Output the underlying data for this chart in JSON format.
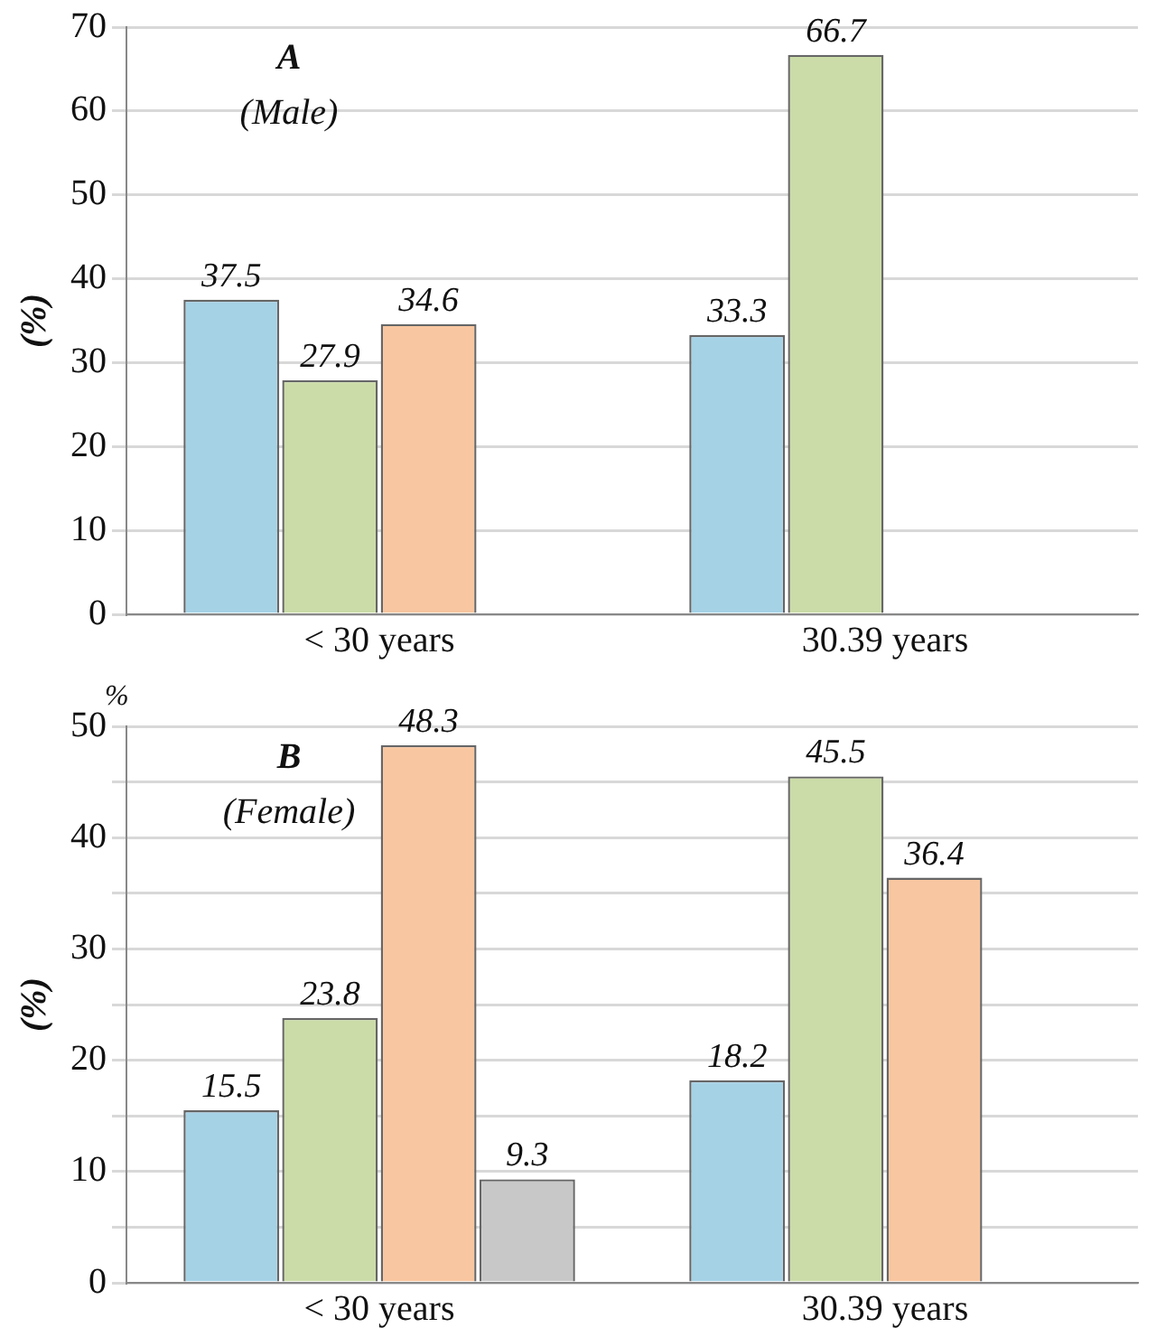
{
  "chart_data": [
    {
      "type": "bar",
      "title": "A",
      "subtitle": "(Male)",
      "ylabel": "(%)",
      "categories": [
        "< 30 years",
        "30.39 years"
      ],
      "ylim": [
        0,
        70
      ],
      "yticks": [
        0,
        10,
        20,
        30,
        40,
        50,
        60,
        70
      ],
      "grid": "y",
      "legend": false,
      "series": [
        {
          "color": "#a6d2e6",
          "values": [
            37.5,
            33.3
          ],
          "value_labels": [
            "37.5",
            "33.3"
          ]
        },
        {
          "color": "#cbdca8",
          "values": [
            27.9,
            66.7
          ],
          "value_labels": [
            "27.9",
            "66.7"
          ]
        },
        {
          "color": "#f8c6a0",
          "values": [
            34.6,
            0
          ],
          "value_labels": [
            "34.6",
            null
          ]
        },
        {
          "color": "#c8c8c8",
          "values": [
            0,
            0
          ],
          "value_labels": [
            null,
            null
          ]
        }
      ]
    },
    {
      "type": "bar",
      "title": "B",
      "subtitle": "(Female)",
      "ylabel": "(%)",
      "annotations": [
        "%"
      ],
      "categories": [
        "< 30 years",
        "30.39 years"
      ],
      "ylim": [
        0,
        50
      ],
      "yticks": [
        0,
        {
          "value": 5,
          "label": null
        },
        10,
        {
          "value": 15,
          "label": null
        },
        20,
        {
          "value": 25,
          "label": null
        },
        30,
        {
          "value": 35,
          "label": null
        },
        40,
        {
          "value": 45,
          "label": null
        },
        50
      ],
      "grid": "y",
      "legend": false,
      "series": [
        {
          "color": "#a6d2e6",
          "values": [
            15.5,
            18.2
          ],
          "value_labels": [
            "15.5",
            "18.2"
          ]
        },
        {
          "color": "#cbdca8",
          "values": [
            23.8,
            45.5
          ],
          "value_labels": [
            "23.8",
            "45.5"
          ]
        },
        {
          "color": "#f8c6a0",
          "values": [
            48.3,
            36.4
          ],
          "value_labels": [
            "48.3",
            "36.4"
          ]
        },
        {
          "color": "#c8c8c8",
          "values": [
            9.3,
            0
          ],
          "value_labels": [
            "9.3",
            null
          ]
        }
      ]
    }
  ]
}
